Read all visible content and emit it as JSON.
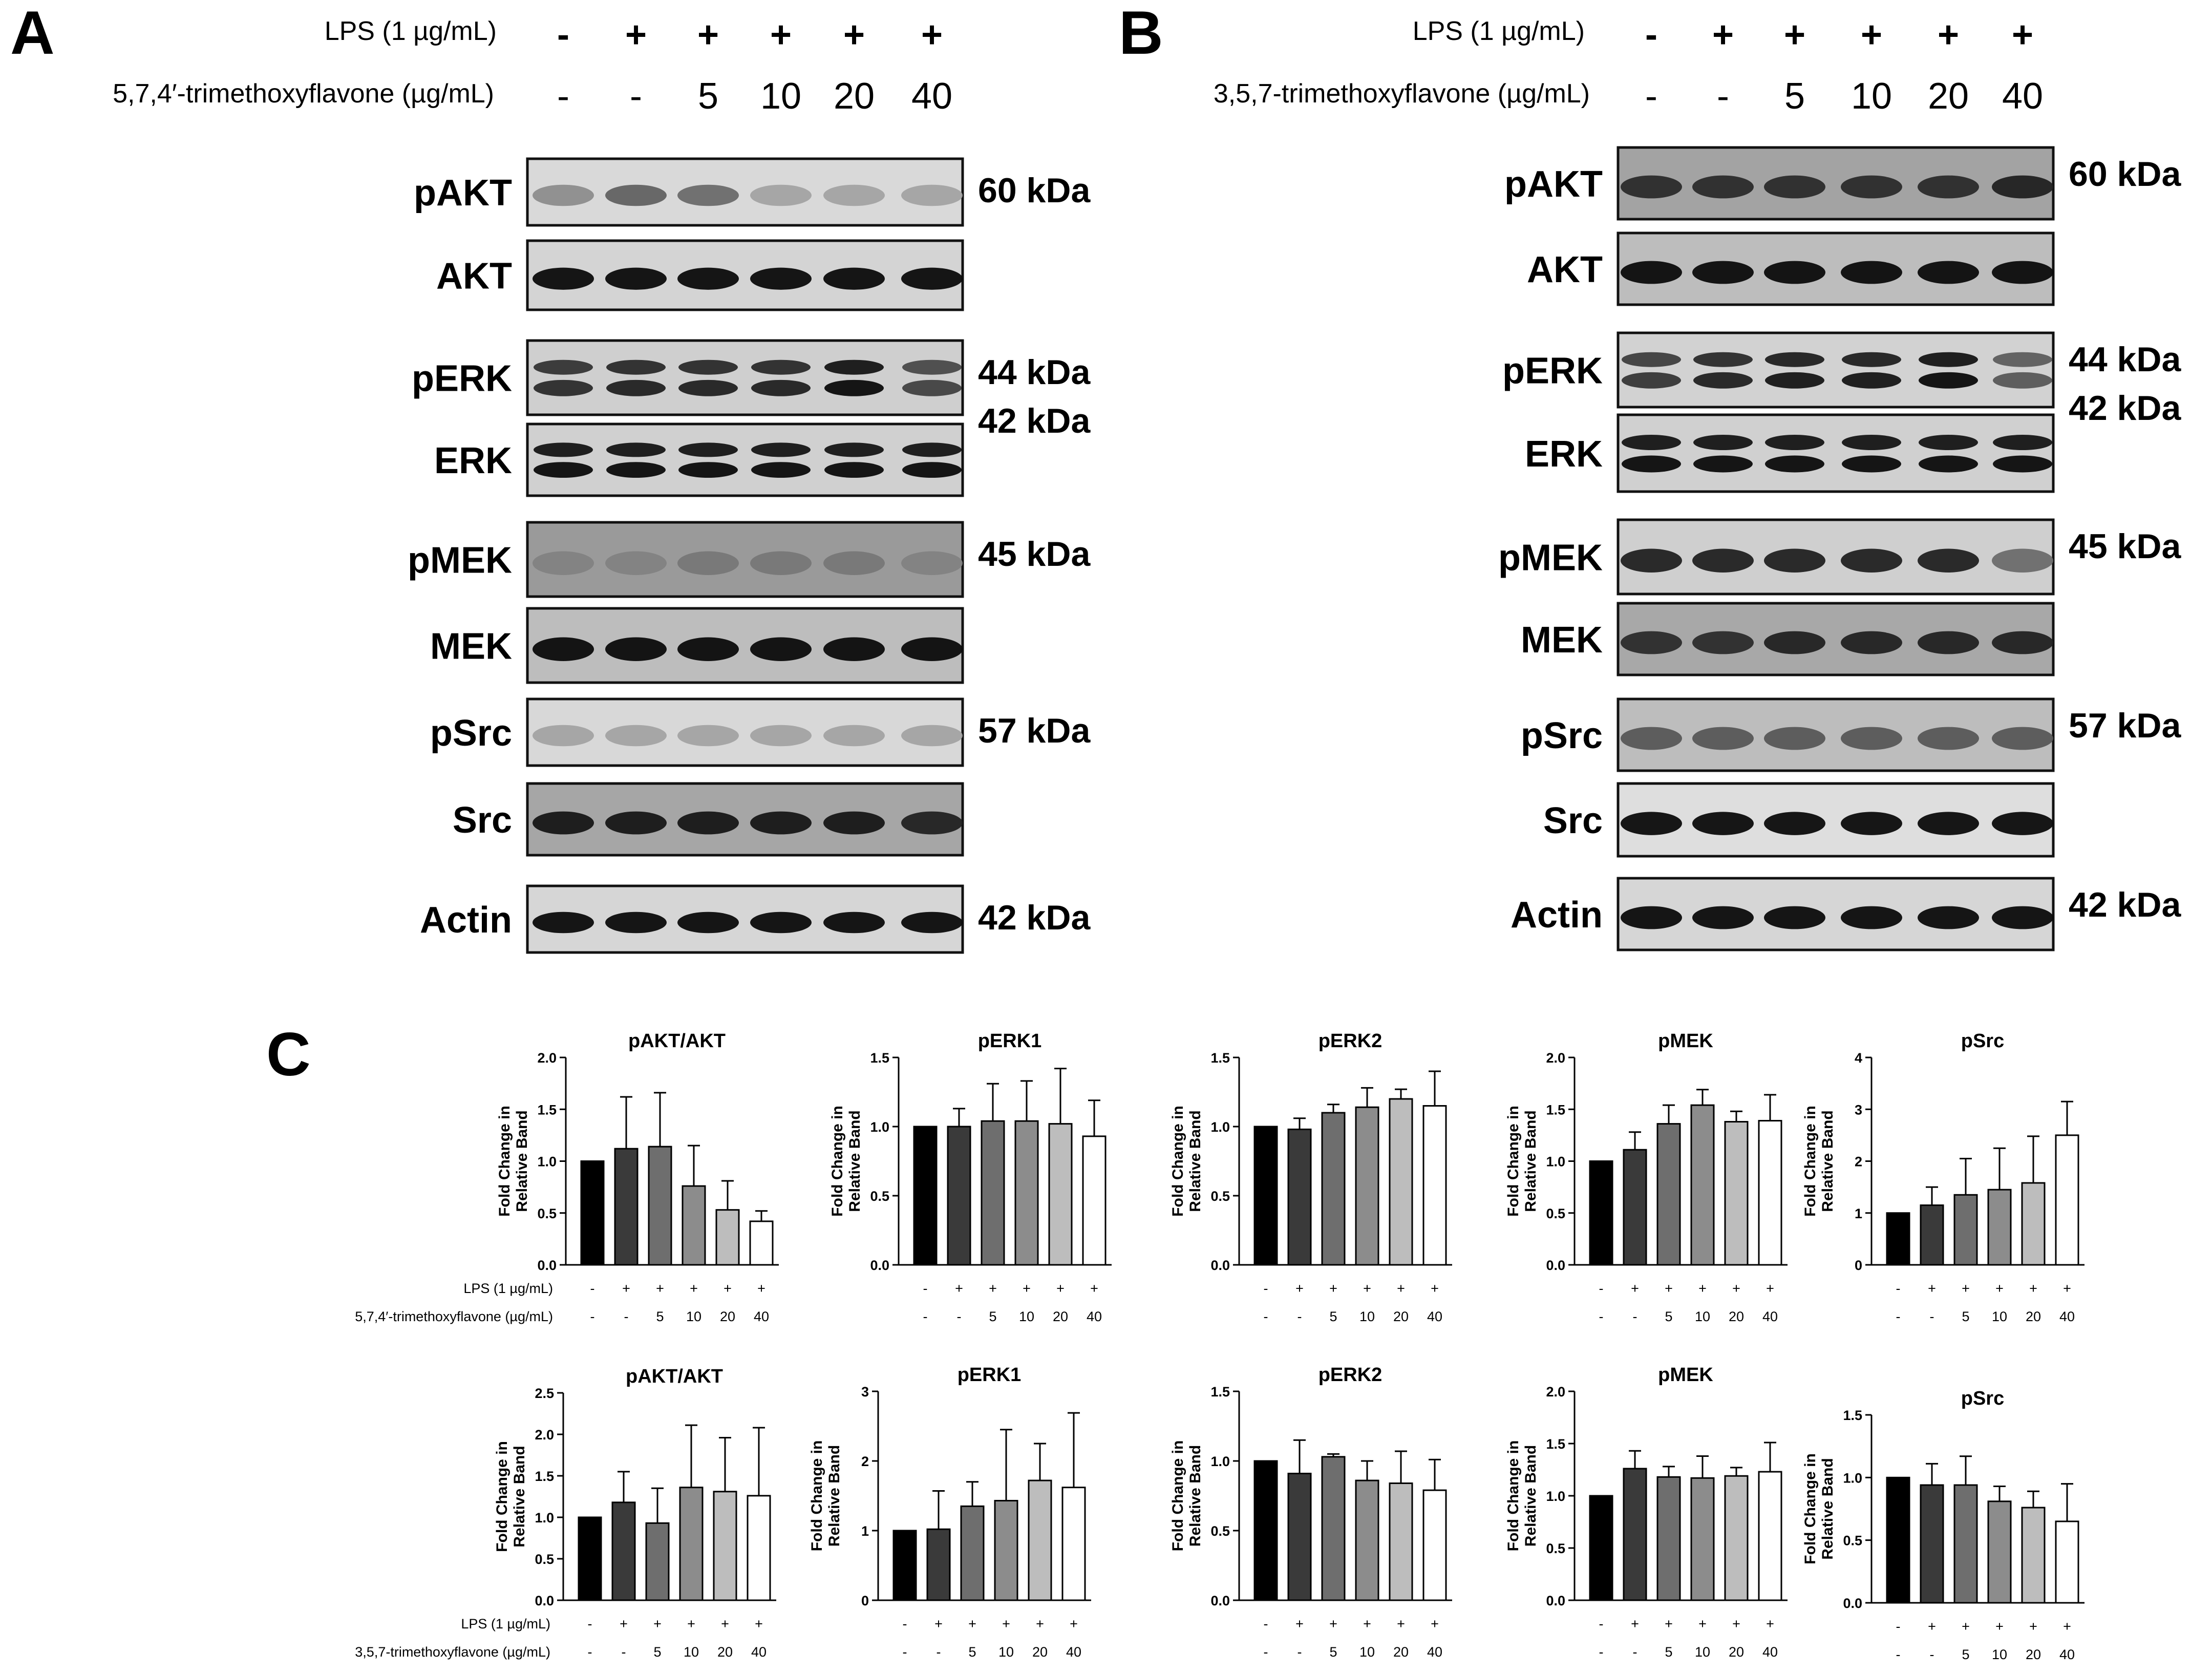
{
  "panels": {
    "A": {
      "letter": "A",
      "lps_label": "LPS (1 µg/mL)",
      "lps_values": [
        "-",
        "+",
        "+",
        "+",
        "+",
        "+"
      ],
      "compound_label": "5,7,4′-trimethoxyflavone (µg/mL)",
      "compound_values": [
        "-",
        "-",
        "5",
        "10",
        "20",
        "40"
      ],
      "blots": [
        {
          "label": "pAKT",
          "kda": "60 kDa",
          "kda2": "",
          "bg": "#d9d9d9",
          "bands": 1,
          "dark": [
            0.35,
            0.55,
            0.5,
            0.25,
            0.25,
            0.25
          ]
        },
        {
          "label": "AKT",
          "kda": "",
          "kda2": "",
          "bg": "#d4d4d4",
          "bands": 1,
          "dark": [
            0.95,
            0.95,
            0.95,
            0.95,
            0.95,
            0.95
          ]
        },
        {
          "label": "pERK",
          "kda": "44 kDa",
          "kda2": "42 kDa",
          "bg": "#cfcfcf",
          "bands": 2,
          "dark": [
            0.8,
            0.85,
            0.85,
            0.85,
            0.95,
            0.7
          ]
        },
        {
          "label": "ERK",
          "kda": "",
          "kda2": "",
          "bg": "#d0d0d0",
          "bands": 2,
          "dark": [
            0.95,
            0.95,
            0.95,
            0.95,
            0.95,
            0.95
          ]
        },
        {
          "label": "pMEK",
          "kda": "45 kDa",
          "kda2": "",
          "bg": "#9a9a9a",
          "bands": 1,
          "dark": [
            0.4,
            0.4,
            0.45,
            0.45,
            0.45,
            0.4
          ]
        },
        {
          "label": "MEK",
          "kda": "",
          "kda2": "",
          "bg": "#bdbdbd",
          "bands": 1,
          "dark": [
            0.95,
            0.95,
            0.95,
            0.95,
            0.95,
            0.95
          ]
        },
        {
          "label": "pSrc",
          "kda": "57 kDa",
          "kda2": "",
          "bg": "#d8d8d8",
          "bands": 1,
          "dark": [
            0.25,
            0.25,
            0.25,
            0.25,
            0.25,
            0.25
          ]
        },
        {
          "label": "Src",
          "kda": "",
          "kda2": "",
          "bg": "#a6a6a6",
          "bands": 1,
          "dark": [
            0.9,
            0.9,
            0.9,
            0.9,
            0.9,
            0.85
          ]
        },
        {
          "label": "Actin",
          "kda": "42 kDa",
          "kda2": "",
          "bg": "#d6d6d6",
          "bands": 1,
          "dark": [
            0.95,
            0.95,
            0.95,
            0.95,
            0.95,
            0.95
          ]
        }
      ]
    },
    "B": {
      "letter": "B",
      "lps_label": "LPS (1 µg/mL)",
      "lps_values": [
        "-",
        "+",
        "+",
        "+",
        "+",
        "+"
      ],
      "compound_label": "3,5,7-trimethoxyflavone (µg/mL)",
      "compound_values": [
        "-",
        "-",
        "5",
        "10",
        "20",
        "40"
      ],
      "blots": [
        {
          "label": "pAKT",
          "kda": "60 kDa",
          "kda2": "",
          "bg": "#a3a3a3",
          "bands": 1,
          "dark": [
            0.8,
            0.8,
            0.8,
            0.8,
            0.8,
            0.85
          ]
        },
        {
          "label": "AKT",
          "kda": "",
          "kda2": "",
          "bg": "#bdbdbd",
          "bands": 1,
          "dark": [
            0.95,
            0.95,
            0.95,
            0.95,
            0.95,
            0.95
          ]
        },
        {
          "label": "pERK",
          "kda": "44 kDa",
          "kda2": "42 kDa",
          "bg": "#d2d2d2",
          "bands": 2,
          "dark": [
            0.75,
            0.85,
            0.9,
            0.9,
            0.95,
            0.6
          ]
        },
        {
          "label": "ERK",
          "kda": "",
          "kda2": "",
          "bg": "#d0d0d0",
          "bands": 2,
          "dark": [
            0.95,
            0.95,
            0.95,
            0.95,
            0.95,
            0.95
          ]
        },
        {
          "label": "pMEK",
          "kda": "45 kDa",
          "kda2": "",
          "bg": "#cfcfcf",
          "bands": 1,
          "dark": [
            0.85,
            0.85,
            0.85,
            0.85,
            0.85,
            0.5
          ]
        },
        {
          "label": "MEK",
          "kda": "",
          "kda2": "",
          "bg": "#a8a8a8",
          "bands": 1,
          "dark": [
            0.8,
            0.8,
            0.85,
            0.85,
            0.85,
            0.85
          ]
        },
        {
          "label": "pSrc",
          "kda": "57 kDa",
          "kda2": "",
          "bg": "#bdbdbd",
          "bands": 1,
          "dark": [
            0.6,
            0.6,
            0.6,
            0.6,
            0.6,
            0.6
          ]
        },
        {
          "label": "Src",
          "kda": "",
          "kda2": "",
          "bg": "#dedede",
          "bands": 1,
          "dark": [
            0.95,
            0.95,
            0.95,
            0.95,
            0.95,
            0.95
          ]
        },
        {
          "label": "Actin",
          "kda": "42 kDa",
          "kda2": "",
          "bg": "#d6d6d6",
          "bands": 1,
          "dark": [
            0.95,
            0.95,
            0.95,
            0.95,
            0.95,
            0.95
          ]
        }
      ]
    },
    "C": {
      "letter": "C"
    }
  },
  "bar_colors": [
    "#000000",
    "#3a3a3a",
    "#6e6e6e",
    "#8c8c8c",
    "#bdbdbd",
    "#ffffff"
  ],
  "y_axis_label_line1": "Fold Change in",
  "y_axis_label_line2": "Relative Band",
  "row_labels": {
    "top": {
      "lps": "LPS (1 µg/mL)",
      "compound": "5,7,4′-trimethoxyflavone (µg/mL)"
    },
    "bottom": {
      "lps": "LPS (1 µg/mL)",
      "compound": "3,5,7-trimethoxyflavone (µg/mL)"
    }
  },
  "lps_tick_values": [
    "-",
    "+",
    "+",
    "+",
    "+",
    "+"
  ],
  "compound_tick_values": [
    "-",
    "-",
    "5",
    "10",
    "20",
    "40"
  ],
  "chart_data": [
    {
      "type": "bar",
      "title": "pAKT/AKT",
      "ylabel": "Fold Change in Relative Band",
      "ylim": [
        0,
        2.0
      ],
      "yticks": [
        "0.0",
        "0.5",
        "1.0",
        "1.5",
        "2.0"
      ],
      "tickvals": [
        0,
        0.5,
        1.0,
        1.5,
        2.0
      ],
      "categories": [
        "-/-",
        "+/-",
        "+/5",
        "+/10",
        "+/20",
        "+/40"
      ],
      "values": [
        1.0,
        1.12,
        1.14,
        0.76,
        0.53,
        0.42
      ],
      "errors": [
        0,
        0.5,
        0.52,
        0.39,
        0.28,
        0.1
      ]
    },
    {
      "type": "bar",
      "title": "pERK1",
      "ylabel": "Fold Change in Relative Band",
      "ylim": [
        0,
        1.5
      ],
      "yticks": [
        "0.0",
        "0.5",
        "1.0",
        "1.5"
      ],
      "tickvals": [
        0,
        0.5,
        1.0,
        1.5
      ],
      "categories": [
        "-/-",
        "+/-",
        "+/5",
        "+/10",
        "+/20",
        "+/40"
      ],
      "values": [
        1.0,
        1.0,
        1.04,
        1.04,
        1.02,
        0.93
      ],
      "errors": [
        0,
        0.13,
        0.27,
        0.29,
        0.4,
        0.26
      ]
    },
    {
      "type": "bar",
      "title": "pERK2",
      "ylabel": "Fold Change in Relative Band",
      "ylim": [
        0,
        1.5
      ],
      "yticks": [
        "0.0",
        "0.5",
        "1.0",
        "1.5"
      ],
      "tickvals": [
        0,
        0.5,
        1.0,
        1.5
      ],
      "categories": [
        "-/-",
        "+/-",
        "+/5",
        "+/10",
        "+/20",
        "+/40"
      ],
      "values": [
        1.0,
        0.98,
        1.1,
        1.14,
        1.2,
        1.15
      ],
      "errors": [
        0,
        0.08,
        0.06,
        0.14,
        0.07,
        0.25
      ]
    },
    {
      "type": "bar",
      "title": "pMEK",
      "ylabel": "Fold Change in Relative Band",
      "ylim": [
        0,
        2.0
      ],
      "yticks": [
        "0.0",
        "0.5",
        "1.0",
        "1.5",
        "2.0"
      ],
      "tickvals": [
        0,
        0.5,
        1.0,
        1.5,
        2.0
      ],
      "categories": [
        "-/-",
        "+/-",
        "+/5",
        "+/10",
        "+/20",
        "+/40"
      ],
      "values": [
        1.0,
        1.11,
        1.36,
        1.54,
        1.38,
        1.39
      ],
      "errors": [
        0,
        0.17,
        0.18,
        0.15,
        0.1,
        0.25
      ]
    },
    {
      "type": "bar",
      "title": "pSrc",
      "ylabel": "Fold Change in Relative Band",
      "ylim": [
        0,
        4
      ],
      "yticks": [
        "0",
        "1",
        "2",
        "3",
        "4"
      ],
      "tickvals": [
        0,
        1,
        2,
        3,
        4
      ],
      "categories": [
        "-/-",
        "+/-",
        "+/5",
        "+/10",
        "+/20",
        "+/40"
      ],
      "values": [
        1.0,
        1.15,
        1.35,
        1.45,
        1.58,
        2.5
      ],
      "errors": [
        0,
        0.35,
        0.7,
        0.8,
        0.9,
        0.65
      ]
    },
    {
      "type": "bar",
      "title": "pAKT/AKT",
      "ylabel": "Fold Change in Relative Band",
      "ylim": [
        0,
        2.5
      ],
      "yticks": [
        "0.0",
        "0.5",
        "1.0",
        "1.5",
        "2.0",
        "2.5"
      ],
      "tickvals": [
        0,
        0.5,
        1.0,
        1.5,
        2.0,
        2.5
      ],
      "categories": [
        "-/-",
        "+/-",
        "+/5",
        "+/10",
        "+/20",
        "+/40"
      ],
      "values": [
        1.0,
        1.18,
        0.93,
        1.36,
        1.31,
        1.26
      ],
      "errors": [
        0,
        0.37,
        0.42,
        0.75,
        0.65,
        0.82
      ]
    },
    {
      "type": "bar",
      "title": "pERK1",
      "ylabel": "Fold Change in Relative Band",
      "ylim": [
        0,
        3
      ],
      "yticks": [
        "0",
        "1",
        "2",
        "3"
      ],
      "tickvals": [
        0,
        1,
        2,
        3
      ],
      "categories": [
        "-/-",
        "+/-",
        "+/5",
        "+/10",
        "+/20",
        "+/40"
      ],
      "values": [
        1.0,
        1.02,
        1.35,
        1.43,
        1.72,
        1.62
      ],
      "errors": [
        0,
        0.55,
        0.35,
        1.02,
        0.53,
        1.07
      ]
    },
    {
      "type": "bar",
      "title": "pERK2",
      "ylabel": "Fold Change in Relative Band",
      "ylim": [
        0,
        1.5
      ],
      "yticks": [
        "0.0",
        "0.5",
        "1.0",
        "1.5"
      ],
      "tickvals": [
        0,
        0.5,
        1.0,
        1.5
      ],
      "categories": [
        "-/-",
        "+/-",
        "+/5",
        "+/10",
        "+/20",
        "+/40"
      ],
      "values": [
        1.0,
        0.91,
        1.03,
        0.86,
        0.84,
        0.79
      ],
      "errors": [
        0,
        0.24,
        0.02,
        0.14,
        0.23,
        0.22
      ]
    },
    {
      "type": "bar",
      "title": "pMEK",
      "ylabel": "Fold Change in Relative Band",
      "ylim": [
        0,
        2.0
      ],
      "yticks": [
        "0.0",
        "0.5",
        "1.0",
        "1.5",
        "2.0"
      ],
      "tickvals": [
        0,
        0.5,
        1.0,
        1.5,
        2.0
      ],
      "categories": [
        "-/-",
        "+/-",
        "+/5",
        "+/10",
        "+/20",
        "+/40"
      ],
      "values": [
        1.0,
        1.26,
        1.18,
        1.17,
        1.19,
        1.23
      ],
      "errors": [
        0,
        0.17,
        0.1,
        0.21,
        0.08,
        0.28
      ]
    },
    {
      "type": "bar",
      "title": "pSrc",
      "ylabel": "Fold Change in Relative Band",
      "ylim": [
        0,
        1.5
      ],
      "yticks": [
        "0.0",
        "0.5",
        "1.0",
        "1.5"
      ],
      "tickvals": [
        0,
        0.5,
        1.0,
        1.5
      ],
      "categories": [
        "-/-",
        "+/-",
        "+/5",
        "+/10",
        "+/20",
        "+/40"
      ],
      "values": [
        1.0,
        0.94,
        0.94,
        0.81,
        0.76,
        0.65
      ],
      "errors": [
        0,
        0.17,
        0.23,
        0.12,
        0.13,
        0.3
      ]
    }
  ]
}
